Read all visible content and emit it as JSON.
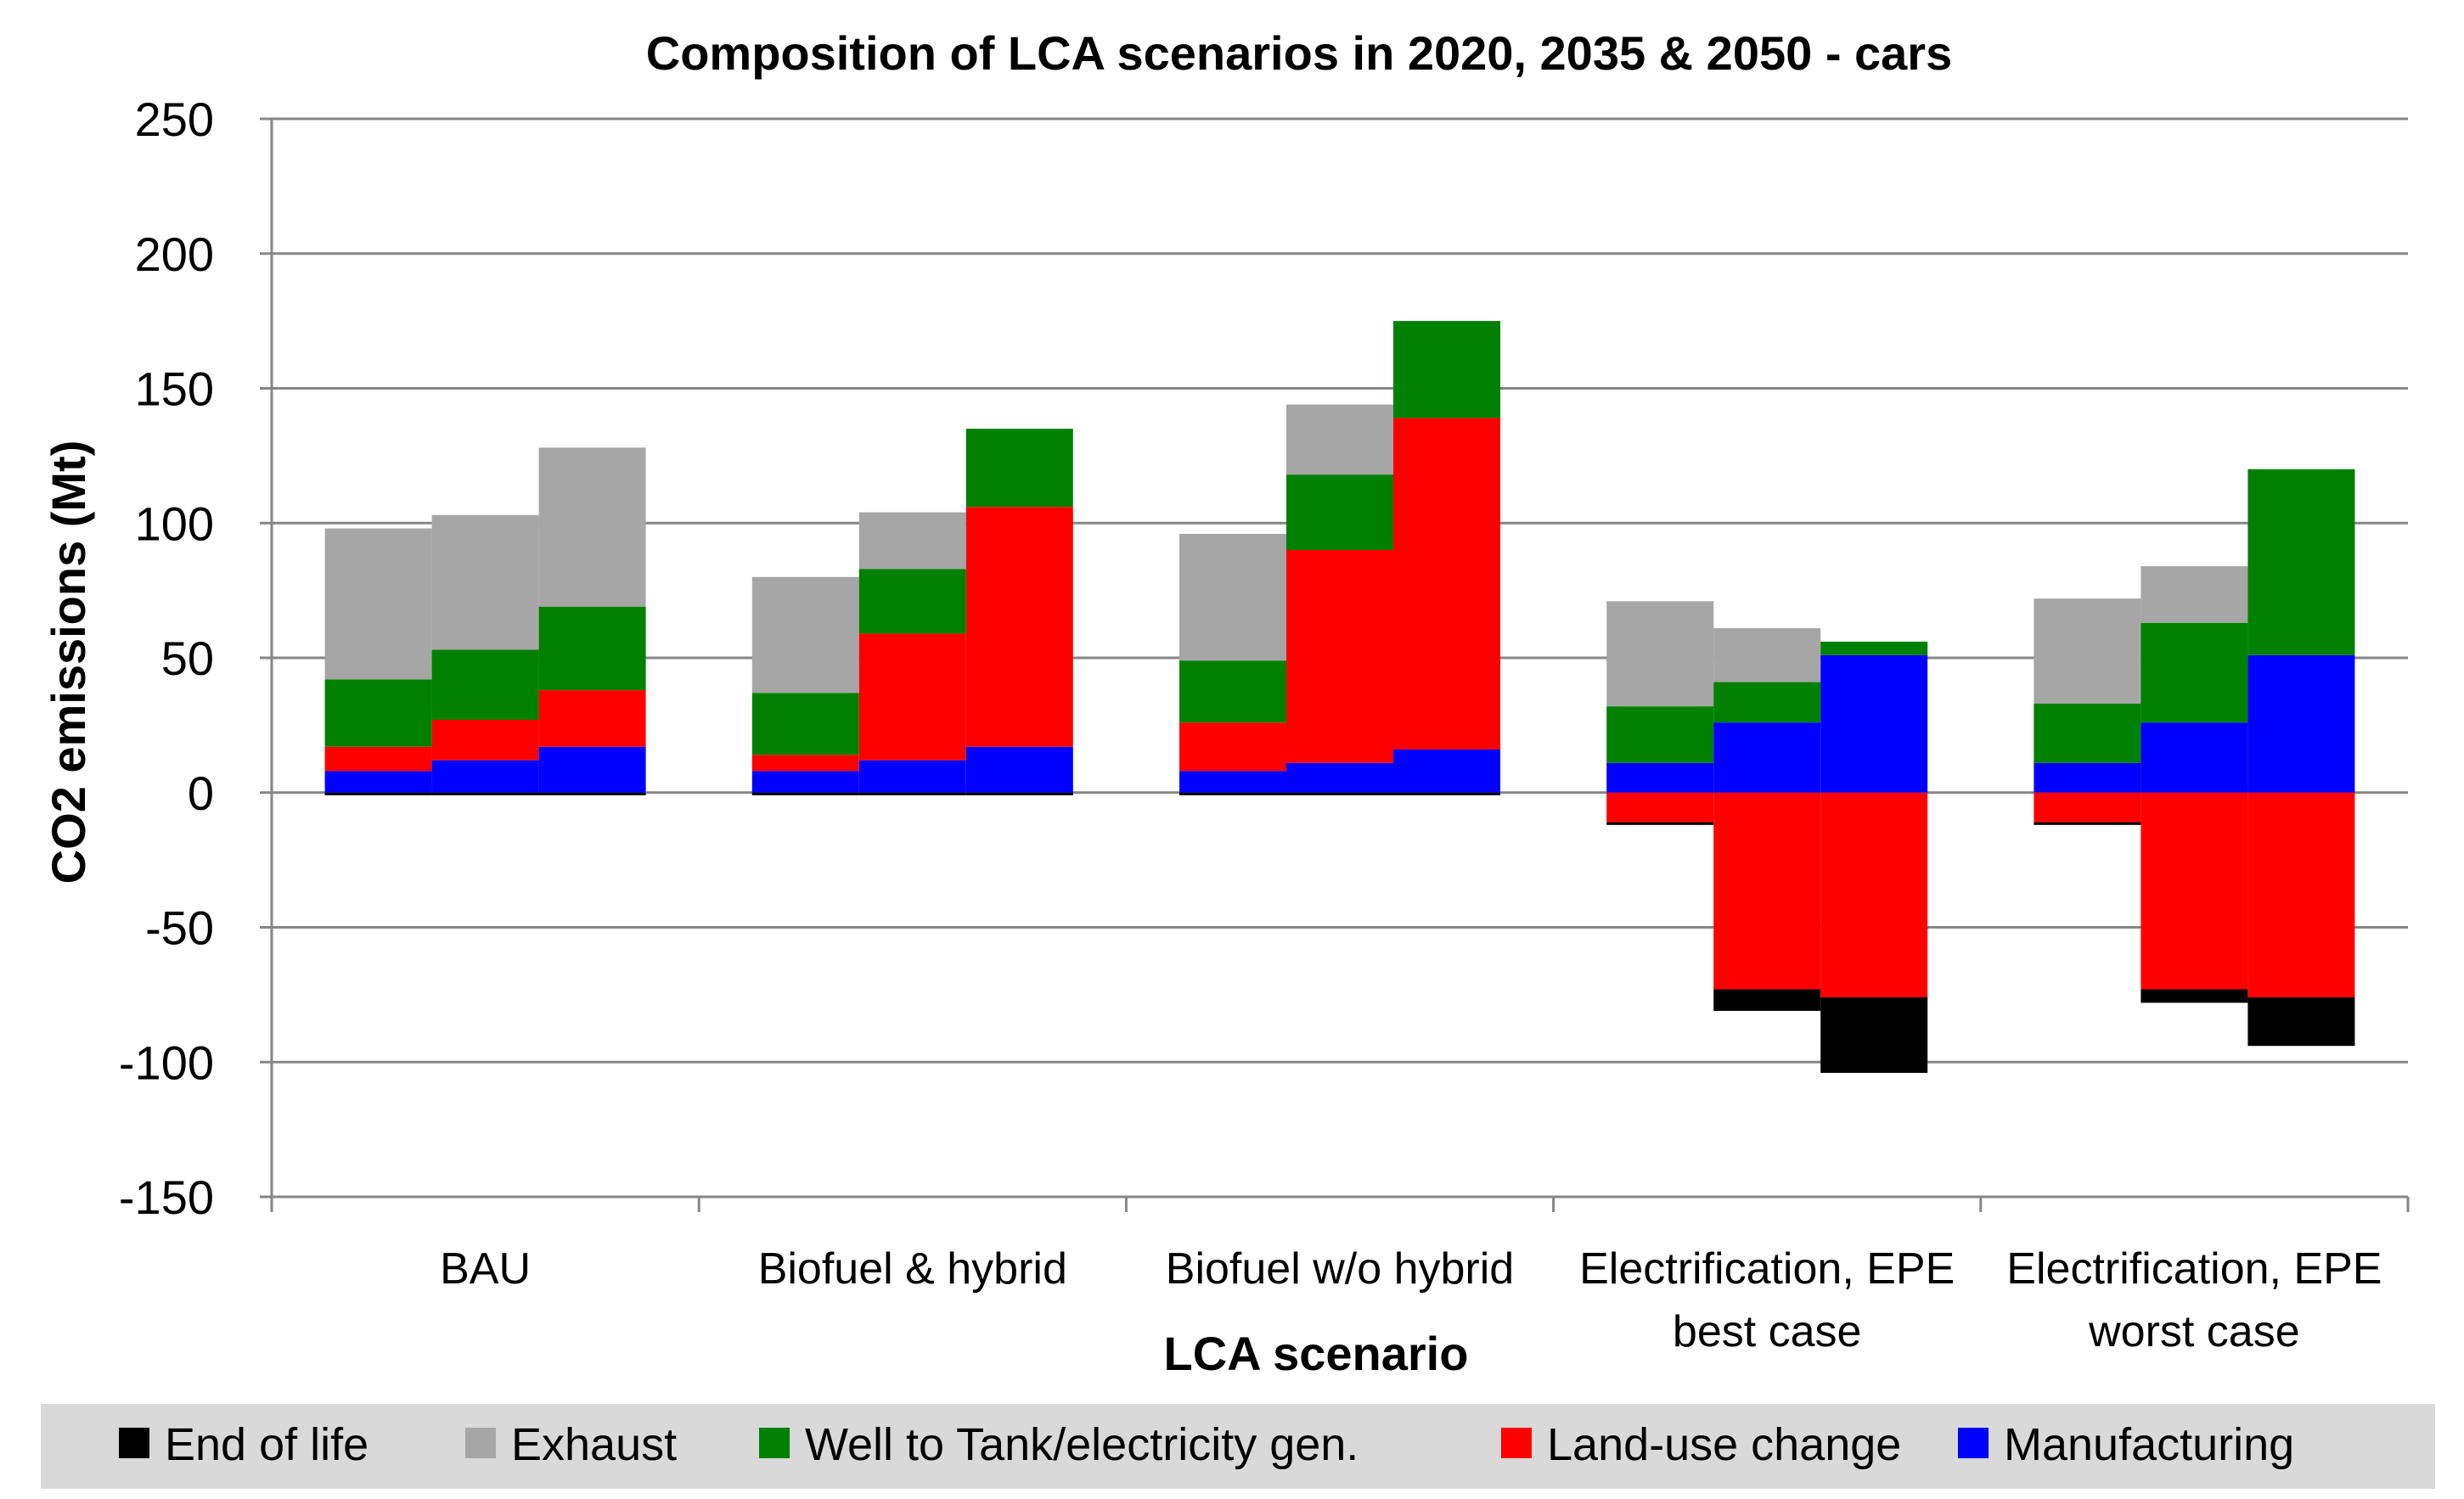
{
  "chart_data": {
    "type": "bar",
    "subtype": "stacked",
    "title": "Composition of LCA scenarios in 2020, 2035 & 2050 - cars",
    "xlabel": "LCA scenario",
    "ylabel": "CO2 emissions (Mt)",
    "ylim": [
      -150,
      250
    ],
    "yticks": [
      -150,
      -100,
      -50,
      0,
      50,
      100,
      150,
      200,
      250
    ],
    "grid": true,
    "legend_position": "bottom",
    "years_per_group": [
      "2020",
      "2035",
      "2050"
    ],
    "categories": [
      [
        "BAU"
      ],
      [
        "Biofuel & hybrid"
      ],
      [
        "Biofuel w/o hybrid"
      ],
      [
        "Electrification, EPE",
        "best case"
      ],
      [
        "Electrification, EPE",
        "worst case"
      ]
    ],
    "series": [
      {
        "name": "Manufacturing",
        "color": "#0000FF",
        "values": [
          [
            8,
            12,
            17
          ],
          [
            8,
            12,
            17
          ],
          [
            8,
            11,
            16
          ],
          [
            11,
            26,
            51
          ],
          [
            11,
            26,
            51
          ]
        ]
      },
      {
        "name": "Land-use change",
        "color": "#FF0000",
        "values": [
          [
            9,
            15,
            21
          ],
          [
            6,
            47,
            89
          ],
          [
            18,
            79,
            123
          ],
          [
            -11,
            -73,
            -76
          ],
          [
            -11,
            -73,
            -76
          ]
        ]
      },
      {
        "name": "Well to Tank/electricity gen.",
        "color": "#008000",
        "values": [
          [
            25,
            26,
            31
          ],
          [
            23,
            24,
            29
          ],
          [
            23,
            28,
            36
          ],
          [
            21,
            15,
            5
          ],
          [
            22,
            37,
            69
          ]
        ]
      },
      {
        "name": "Exhaust",
        "color": "#A6A6A6",
        "values": [
          [
            56,
            50,
            59
          ],
          [
            43,
            21,
            0
          ],
          [
            47,
            26,
            0
          ],
          [
            39,
            20,
            0
          ],
          [
            39,
            21,
            0
          ]
        ]
      },
      {
        "name": "End of life",
        "color": "#000000",
        "values": [
          [
            -1,
            -1,
            -1
          ],
          [
            -1,
            -1,
            -1
          ],
          [
            -1,
            -1,
            -1
          ],
          [
            -1,
            -8,
            -28
          ],
          [
            -1,
            -5,
            -18
          ]
        ]
      }
    ],
    "legend": [
      {
        "name": "End of life",
        "color": "#000000"
      },
      {
        "name": "Exhaust",
        "color": "#A6A6A6"
      },
      {
        "name": "Well to Tank/electricity gen.",
        "color": "#008000"
      },
      {
        "name": "Land-use change",
        "color": "#FF0000"
      },
      {
        "name": "Manufacturing",
        "color": "#0000FF"
      }
    ]
  }
}
